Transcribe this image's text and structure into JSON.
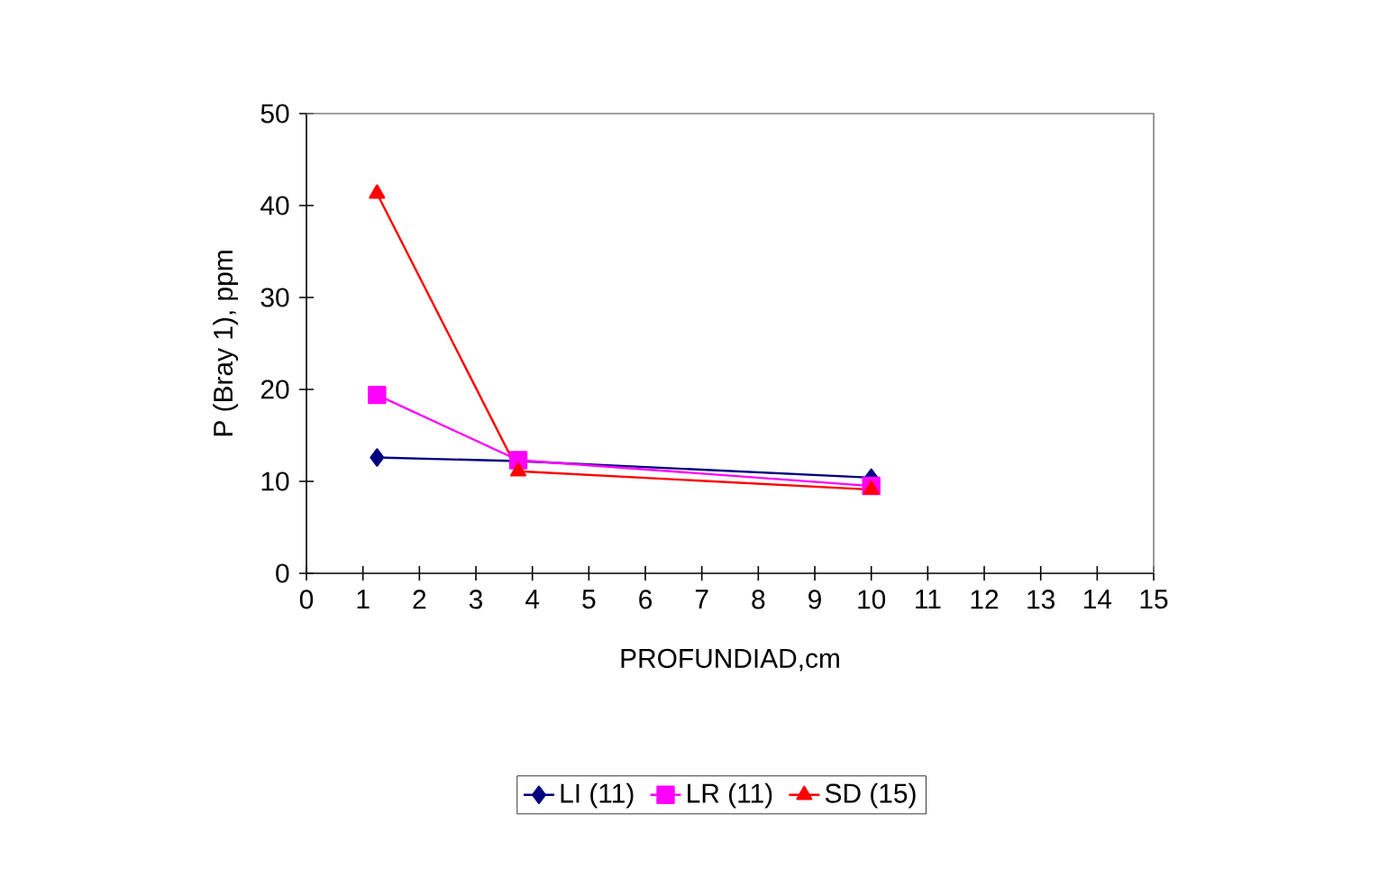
{
  "chart_data": {
    "type": "line",
    "xlabel": "PROFUNDIAD,cm",
    "ylabel": "P (Bray 1), ppm",
    "xlim": [
      0,
      15
    ],
    "xticks": [
      0,
      1,
      2,
      3,
      4,
      5,
      6,
      7,
      8,
      9,
      10,
      11,
      12,
      13,
      14,
      15
    ],
    "ylim": [
      0,
      50
    ],
    "yticks": [
      0,
      10,
      20,
      30,
      40,
      50
    ],
    "grid": false,
    "legend": "bottom",
    "series": [
      {
        "name": "LI (11)",
        "color": "#000080",
        "marker": "diamond",
        "x": [
          1.25,
          3.75,
          10
        ],
        "values": [
          12.6,
          12.2,
          10.4
        ]
      },
      {
        "name": "LR (11)",
        "color": "#ff00ff",
        "marker": "square",
        "x": [
          1.25,
          3.75,
          10
        ],
        "values": [
          19.4,
          12.3,
          9.5
        ]
      },
      {
        "name": "SD (15)",
        "color": "#ff0000",
        "marker": "triangle",
        "x": [
          1.25,
          3.75,
          10
        ],
        "values": [
          41.3,
          11.1,
          9.1
        ]
      }
    ]
  }
}
